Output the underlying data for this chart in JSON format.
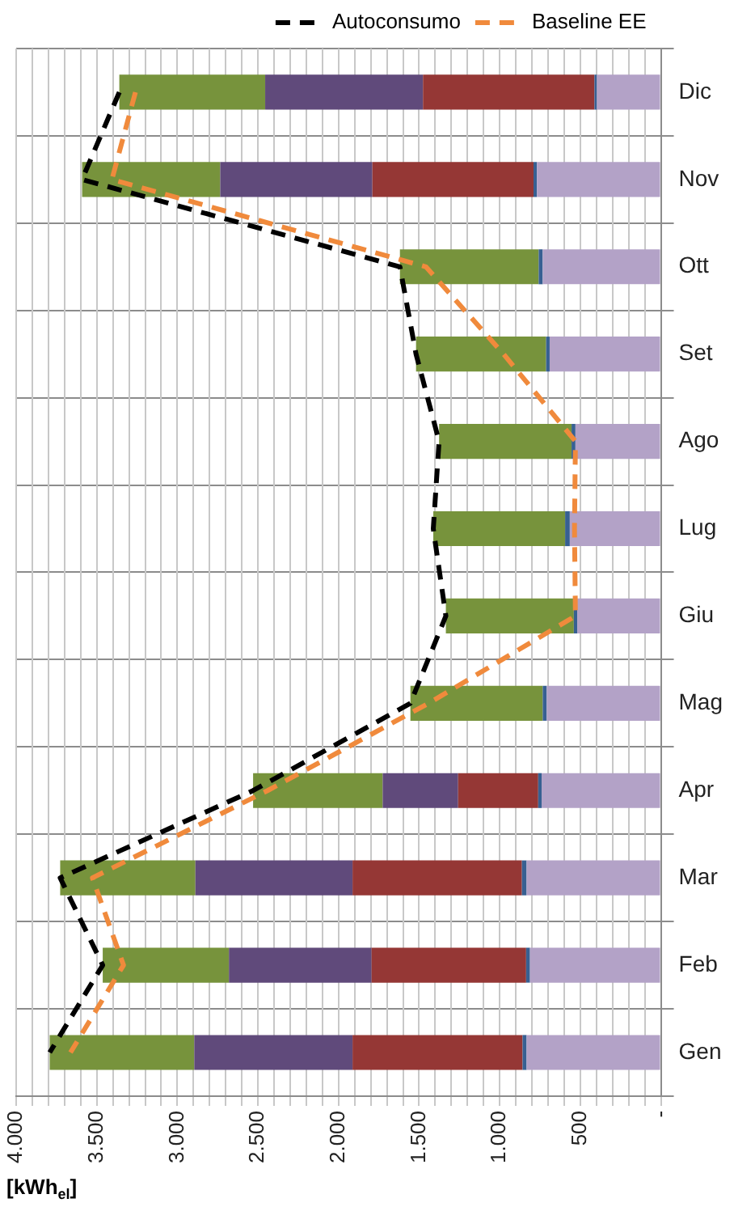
{
  "chart_data": {
    "type": "bar",
    "stacked": true,
    "orientation": "horizontal",
    "xlabel": "[kWh$_{el}$]",
    "categories": [
      "Dic",
      "Nov",
      "Ott",
      "Set",
      "Ago",
      "Lug",
      "Giu",
      "Mag",
      "Apr",
      "Mar",
      "Feb",
      "Gen"
    ],
    "series": [
      {
        "color": "#b3a2c7",
        "values": [
          397,
          769,
          733,
          690,
          530,
          565,
          519,
          708,
          740,
          833,
          812,
          833
        ]
      },
      {
        "color": "#376092",
        "values": [
          15,
          21,
          25,
          22,
          24,
          29,
          21,
          25,
          21,
          29,
          24,
          25
        ]
      },
      {
        "color": "#953735",
        "values": [
          1064,
          1000,
          0,
          0,
          0,
          0,
          0,
          0,
          497,
          1051,
          959,
          1055
        ]
      },
      {
        "color": "#604a7b",
        "values": [
          979,
          944,
          0,
          0,
          0,
          0,
          0,
          0,
          468,
          975,
          885,
          982
        ]
      },
      {
        "color": "#77933c",
        "values": [
          905,
          857,
          861,
          807,
          822,
          818,
          794,
          821,
          804,
          839,
          783,
          897
        ]
      },
      {
        "name": "Autoconsumo",
        "type": "line",
        "line_style": "dashed",
        "color": "#000000",
        "values": [
          3360,
          3591,
          1619,
          1519,
          1376,
          1412,
          1334,
          1554,
          2530,
          3727,
          3463,
          3792
        ]
      },
      {
        "name": "Baseline EE",
        "type": "line",
        "line_style": "dashed",
        "color": "#f08a3c",
        "values": [
          3260,
          3406,
          1458,
          976,
          530,
          536,
          530,
          1441,
          2440,
          3527,
          3334,
          3663
        ]
      }
    ],
    "xlim": [
      4000,
      0
    ],
    "xticks": [
      {
        "value": 0,
        "label": "-"
      },
      {
        "value": 100,
        "label": null
      },
      {
        "value": 200,
        "label": null
      },
      {
        "value": 300,
        "label": null
      },
      {
        "value": 400,
        "label": null
      },
      500,
      {
        "value": 600,
        "label": null
      },
      {
        "value": 700,
        "label": null
      },
      {
        "value": 800,
        "label": null
      },
      {
        "value": 900,
        "label": null
      },
      {
        "value": 1000,
        "label": "1.000"
      },
      {
        "value": 1100,
        "label": null
      },
      {
        "value": 1200,
        "label": null
      },
      {
        "value": 1300,
        "label": null
      },
      {
        "value": 1400,
        "label": null
      },
      {
        "value": 1500,
        "label": "1.500"
      },
      {
        "value": 1600,
        "label": null
      },
      {
        "value": 1700,
        "label": null
      },
      {
        "value": 1800,
        "label": null
      },
      {
        "value": 1900,
        "label": null
      },
      {
        "value": 2000,
        "label": "2.000"
      },
      {
        "value": 2100,
        "label": null
      },
      {
        "value": 2200,
        "label": null
      },
      {
        "value": 2300,
        "label": null
      },
      {
        "value": 2400,
        "label": null
      },
      {
        "value": 2500,
        "label": "2.500"
      },
      {
        "value": 2600,
        "label": null
      },
      {
        "value": 2700,
        "label": null
      },
      {
        "value": 2800,
        "label": null
      },
      {
        "value": 2900,
        "label": null
      },
      {
        "value": 3000,
        "label": "3.000"
      },
      {
        "value": 3100,
        "label": null
      },
      {
        "value": 3200,
        "label": null
      },
      {
        "value": 3300,
        "label": null
      },
      {
        "value": 3400,
        "label": null
      },
      {
        "value": 3500,
        "label": "3.500"
      },
      {
        "value": 3600,
        "label": null
      },
      {
        "value": 3700,
        "label": null
      },
      {
        "value": 3800,
        "label": null
      },
      {
        "value": 3900,
        "label": null
      },
      {
        "value": 4000,
        "label": "4.000"
      }
    ],
    "grid": true,
    "legend": "top right",
    "marker": "none"
  }
}
